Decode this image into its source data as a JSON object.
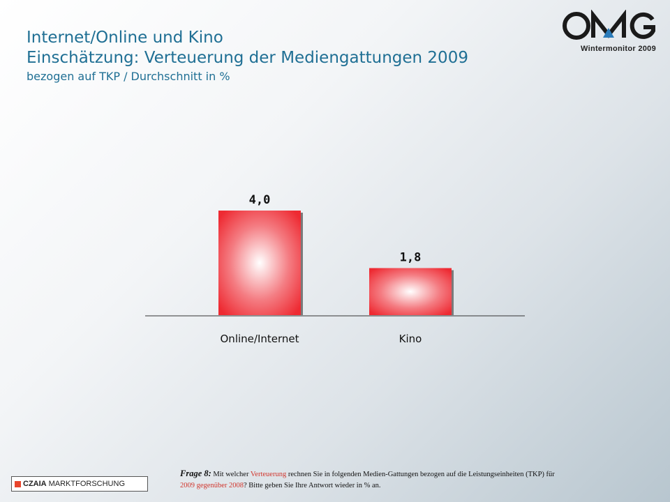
{
  "header": {
    "title_line1": "Internet/Online und Kino",
    "title_line2": "Einschätzung: Verteuerung der Mediengattungen 2009",
    "subtitle": "bezogen auf TKP / Durchschnitt in %"
  },
  "logo": {
    "icon": "omg-logo-icon",
    "caption": "Wintermonitor  2009",
    "colors": {
      "letters": "#1a1a1a",
      "accent": "#2b7bb9"
    }
  },
  "chart_data": {
    "type": "bar",
    "categories": [
      "Online/Internet",
      "Kino"
    ],
    "values": [
      4.0,
      1.8
    ],
    "value_labels": [
      "4,0",
      "1,8"
    ],
    "title": "",
    "xlabel": "",
    "ylabel": "",
    "ylim": [
      0,
      4.0
    ],
    "grid": false,
    "legend": "none",
    "bar_color": "#ee2a32"
  },
  "footer": {
    "brand_name": "CZAIA",
    "brand_rest": "MARKTFORSCHUNG",
    "brand_color": "#e8452c",
    "question_label": "Frage 8:",
    "q_part1": "Mit welcher ",
    "q_hl1": "Verteuerung",
    "q_part2": " rechnen Sie in folgenden Medien-Gattungen bezogen auf die Leistungseinheiten (TKP) für ",
    "q_hl2": "2009 gegenüber 2008",
    "q_part3": "? Bitte geben Sie Ihre Antwort wieder in % an."
  }
}
